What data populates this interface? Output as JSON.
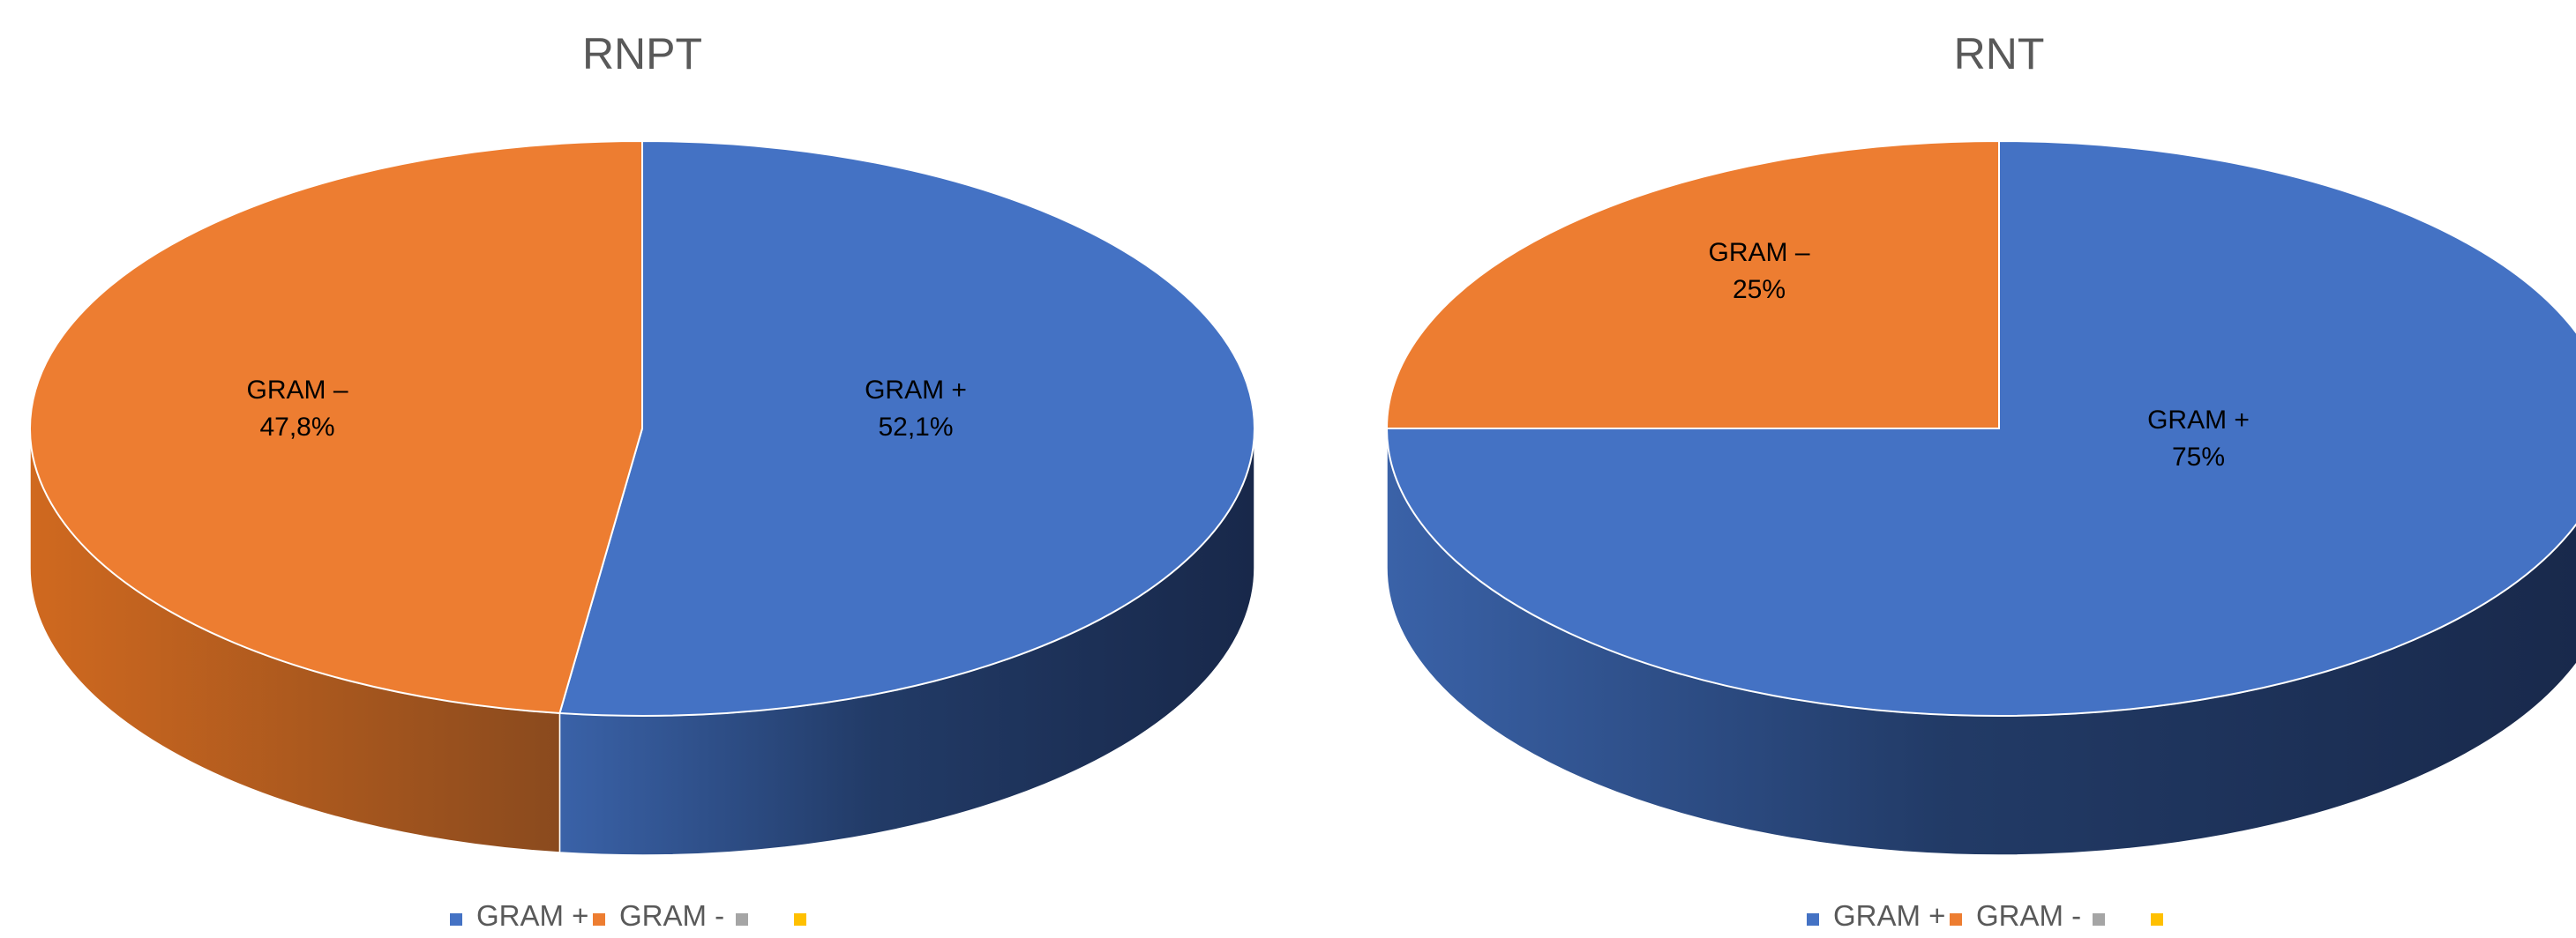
{
  "chart_data": [
    {
      "type": "pie",
      "title": "RNPT",
      "categories": [
        "GRAM +",
        "GRAM -",
        "",
        ""
      ],
      "values": [
        52.1,
        47.8,
        0,
        0
      ],
      "data_labels": [
        {
          "name": "GRAM +",
          "value": "52,1%"
        },
        {
          "name": "GRAM –",
          "value": "47,8%"
        }
      ],
      "legend": [
        "GRAM +",
        "GRAM -",
        "",
        ""
      ],
      "legend_position": "bottom",
      "style": "3d"
    },
    {
      "type": "pie",
      "title": "RNT",
      "categories": [
        "GRAM +",
        "GRAM -",
        "",
        ""
      ],
      "values": [
        75,
        25,
        0,
        0
      ],
      "data_labels": [
        {
          "name": "GRAM +",
          "value": "75%"
        },
        {
          "name": "GRAM –",
          "value": "25%"
        }
      ],
      "legend": [
        "GRAM +",
        "GRAM -",
        "",
        ""
      ],
      "legend_position": "bottom",
      "style": "3d"
    }
  ],
  "colors": {
    "series": [
      "#4472c4",
      "#ed7d31",
      "#a5a5a5",
      "#ffc000"
    ],
    "title": "#595959",
    "legend_text": "#595959",
    "label_text": "#000000"
  }
}
